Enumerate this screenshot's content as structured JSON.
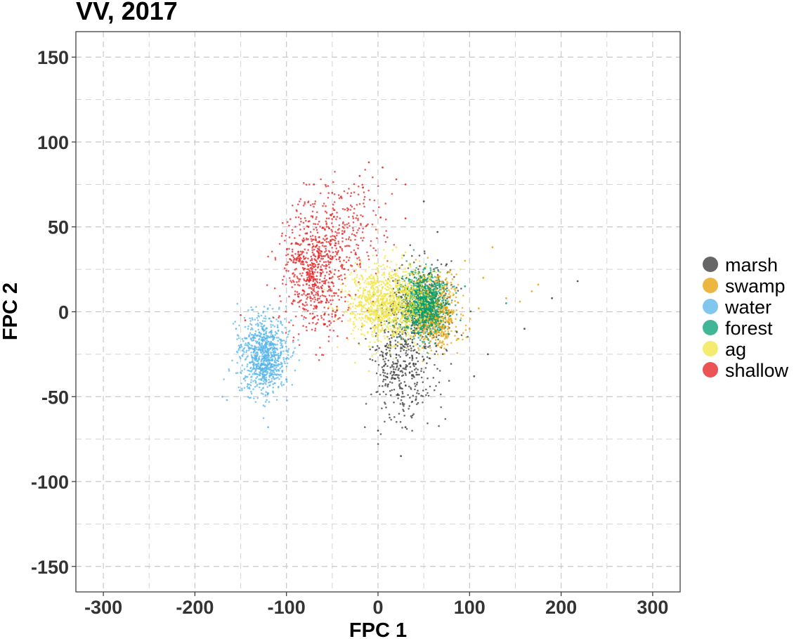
{
  "chart_data": {
    "type": "scatter",
    "title": "VV, 2017",
    "xlabel": "FPC 1",
    "ylabel": "FPC 2",
    "xlim": [
      -330,
      330
    ],
    "ylim": [
      -165,
      165
    ],
    "x_ticks": [
      -300,
      -200,
      -100,
      0,
      100,
      200,
      300
    ],
    "y_ticks": [
      150,
      100,
      50,
      0,
      -50,
      -100,
      -150
    ],
    "x_tick_labels": [
      "-300",
      "-200",
      "-100",
      "0",
      "100",
      "200",
      "300"
    ],
    "y_tick_labels": [
      "150",
      "100",
      "50",
      "0",
      "-50",
      "-100",
      "-150"
    ],
    "grid": true,
    "legend_position": "right",
    "series": [
      {
        "name": "marsh",
        "color": "#333333",
        "clusters": [
          {
            "center": [
              25,
              -30
            ],
            "spread": [
              18,
              17
            ],
            "count": 420
          },
          {
            "center": [
              50,
              5
            ],
            "spread": [
              18,
              12
            ],
            "count": 320
          }
        ],
        "outliers": [
          [
            218,
            18
          ],
          [
            190,
            8
          ],
          [
            120,
            -25
          ],
          [
            105,
            -38
          ],
          [
            75,
            28
          ],
          [
            65,
            47
          ],
          [
            50,
            65
          ],
          [
            25,
            -85
          ],
          [
            0,
            -70
          ],
          [
            30,
            -68
          ],
          [
            160,
            -10
          ]
        ]
      },
      {
        "name": "swamp",
        "color": "#E69F00",
        "clusters": [
          {
            "center": [
              60,
              0
            ],
            "spread": [
              14,
              11
            ],
            "count": 700
          }
        ],
        "outliers": [
          [
            175,
            16
          ],
          [
            168,
            12
          ],
          [
            155,
            6
          ],
          [
            140,
            8
          ],
          [
            115,
            20
          ],
          [
            110,
            2
          ],
          [
            100,
            -10
          ],
          [
            95,
            30
          ],
          [
            125,
            38
          ]
        ]
      },
      {
        "name": "water",
        "color": "#56B4E9",
        "clusters": [
          {
            "center": [
              -125,
              -25
            ],
            "spread": [
              13,
              11
            ],
            "count": 900
          }
        ],
        "outliers": [
          [
            -165,
            -52
          ],
          [
            -170,
            -50
          ],
          [
            -120,
            -68
          ],
          [
            -155,
            -10
          ],
          [
            -95,
            -5
          ],
          [
            -100,
            -40
          ]
        ]
      },
      {
        "name": "forest",
        "color": "#009E73",
        "clusters": [
          {
            "center": [
              50,
              5
            ],
            "spread": [
              12,
              9
            ],
            "count": 900
          }
        ],
        "outliers": [
          [
            140,
            5
          ],
          [
            95,
            15
          ],
          [
            90,
            -5
          ],
          [
            35,
            28
          ],
          [
            25,
            -15
          ]
        ]
      },
      {
        "name": "ag",
        "color": "#F0E442",
        "clusters": [
          {
            "center": [
              10,
              5
            ],
            "spread": [
              22,
              11
            ],
            "count": 1100
          }
        ],
        "outliers": [
          [
            -25,
            -30
          ],
          [
            -35,
            20
          ],
          [
            20,
            38
          ],
          [
            30,
            35
          ],
          [
            90,
            25
          ],
          [
            -10,
            -35
          ]
        ]
      },
      {
        "name": "shallow",
        "color": "#E41A1C",
        "clusters": [
          {
            "center": [
              -70,
              25
            ],
            "spread": [
              18,
              18
            ],
            "count": 700
          },
          {
            "center": [
              -30,
              50
            ],
            "spread": [
              22,
              15
            ],
            "count": 200
          }
        ],
        "outliers": [
          [
            -10,
            88
          ],
          [
            -20,
            80
          ],
          [
            5,
            85
          ],
          [
            30,
            75
          ],
          [
            20,
            78
          ],
          [
            -70,
            75
          ],
          [
            -50,
            70
          ],
          [
            -145,
            -5
          ],
          [
            -150,
            -2
          ],
          [
            30,
            55
          ]
        ]
      }
    ]
  }
}
